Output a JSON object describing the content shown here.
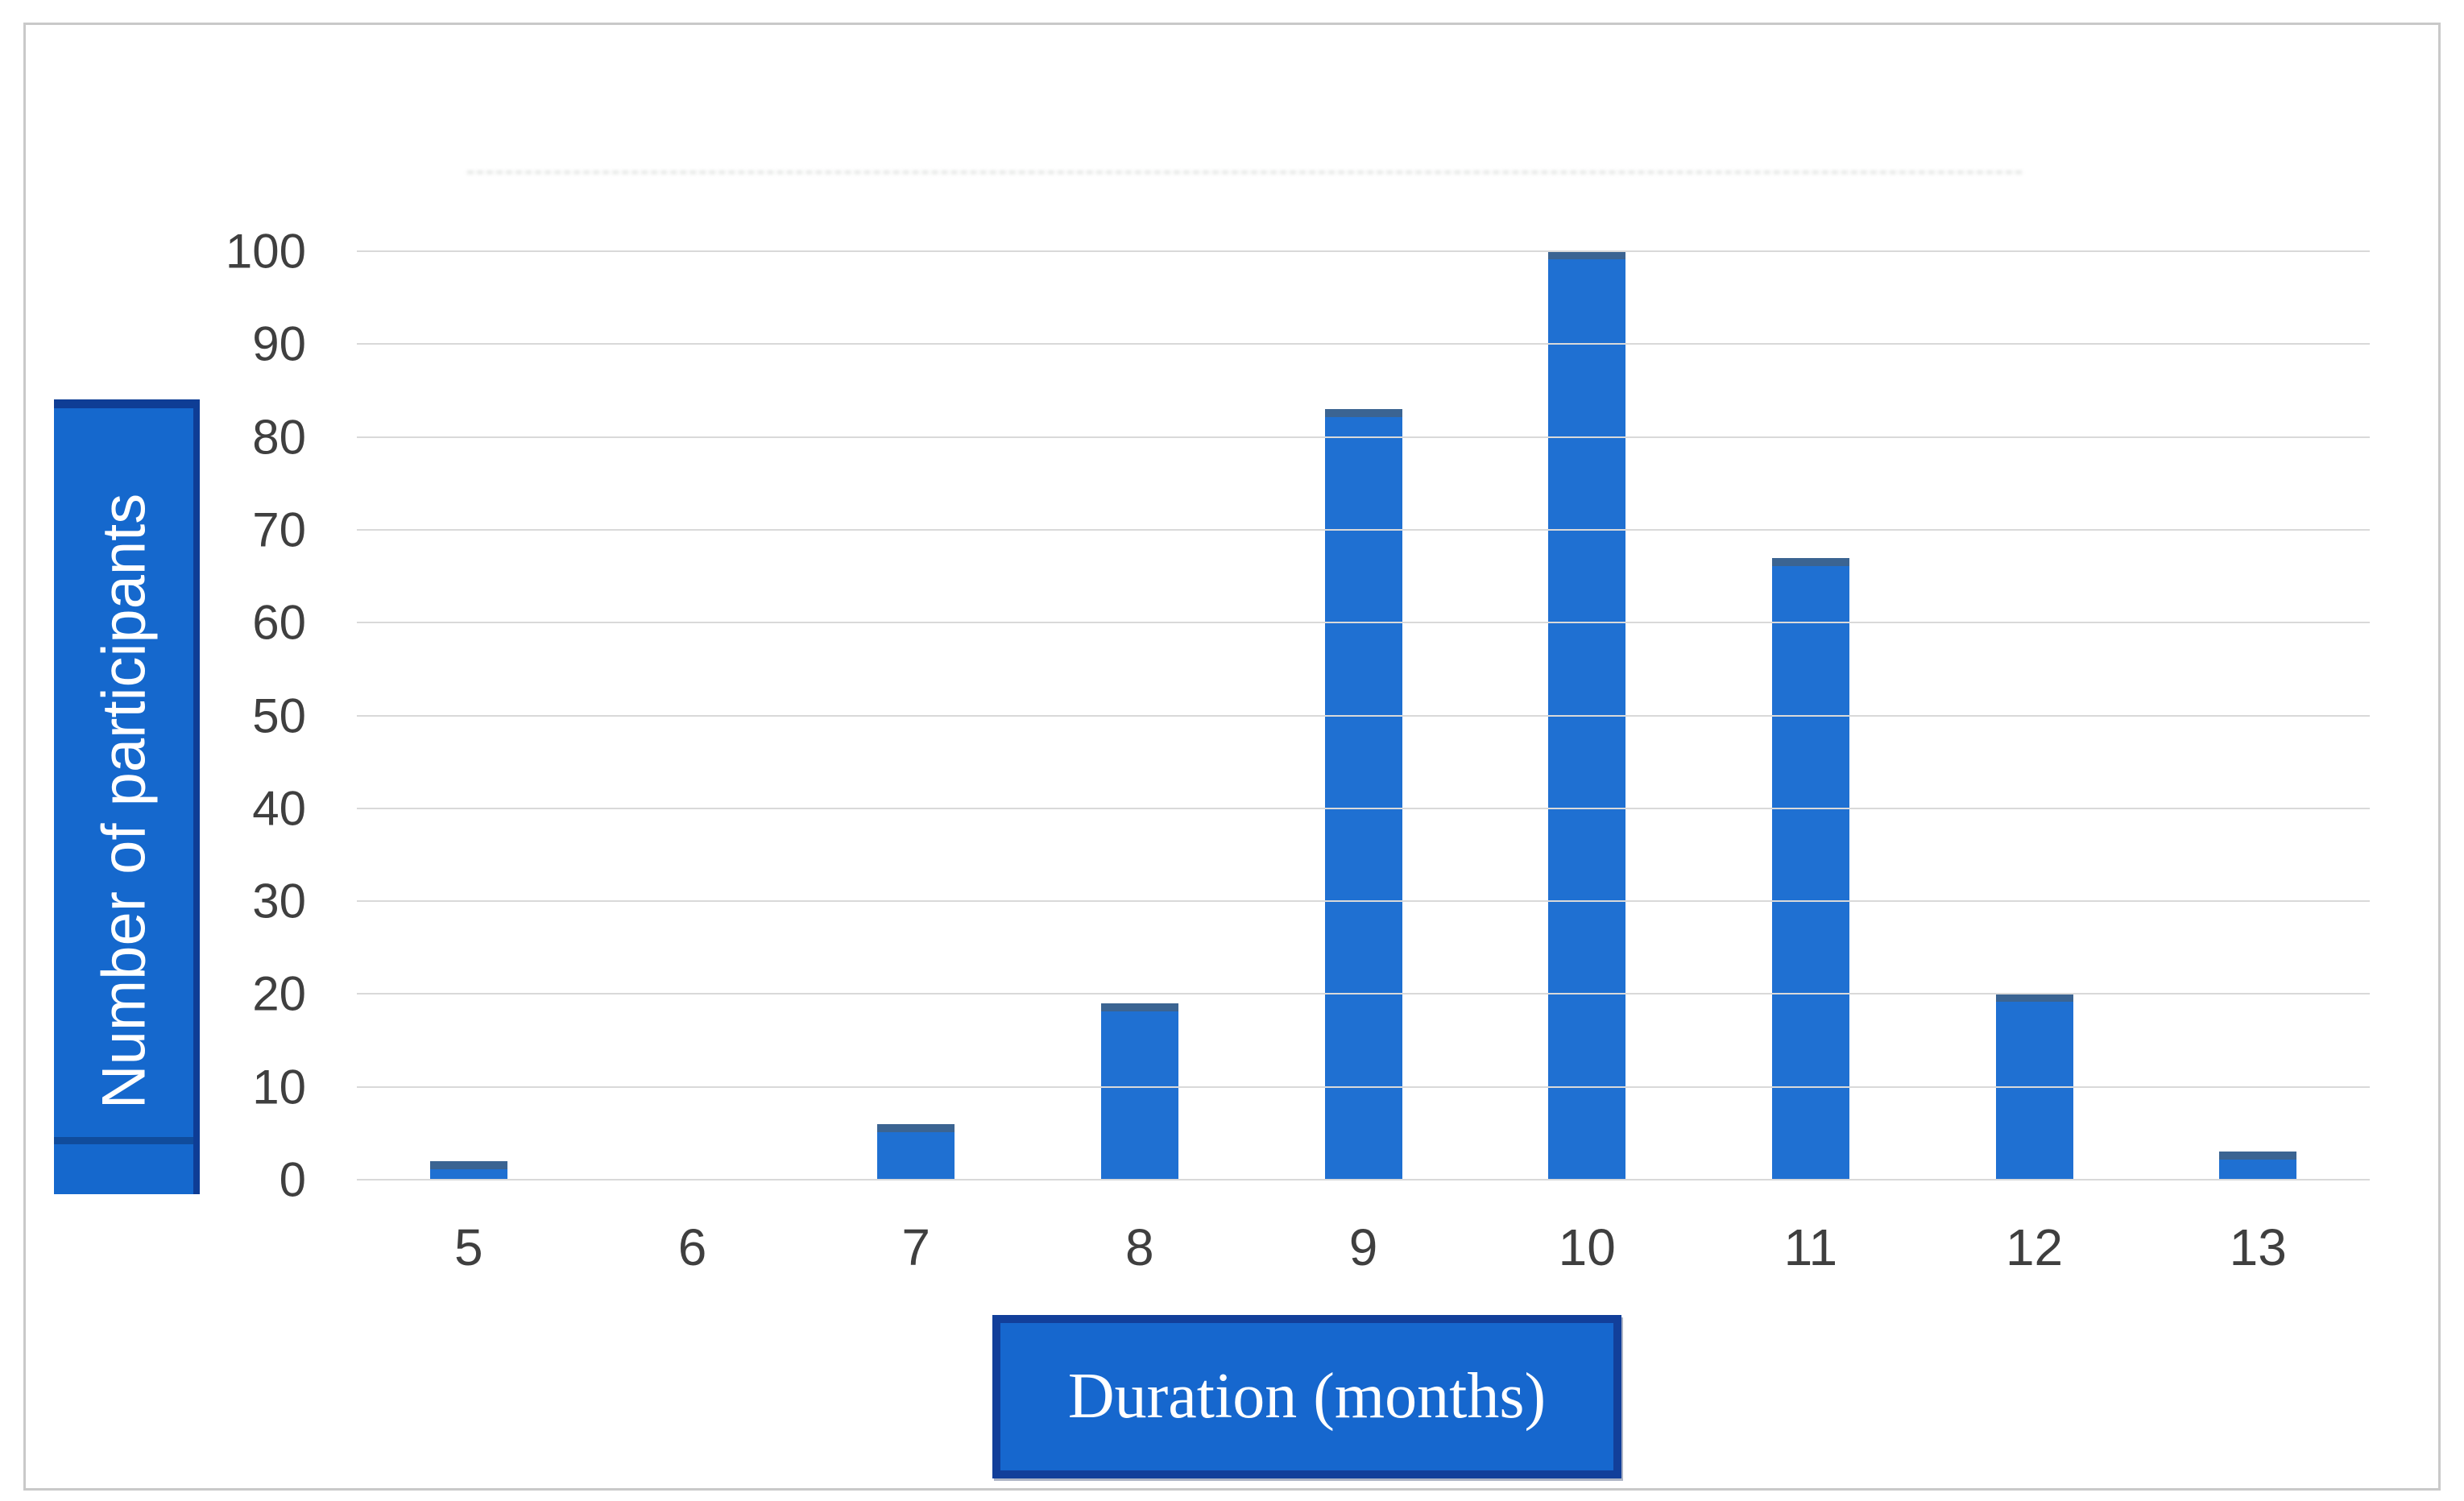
{
  "chart_data": {
    "type": "bar",
    "categories": [
      "5",
      "6",
      "7",
      "8",
      "9",
      "10",
      "11",
      "12",
      "13"
    ],
    "values": [
      2,
      0,
      6,
      19,
      83,
      100,
      67,
      20,
      3
    ],
    "title": "",
    "xlabel": "Duration (months)",
    "ylabel": "Number of participants",
    "ylim": [
      0,
      100
    ],
    "y_ticks": [
      0,
      10,
      20,
      30,
      40,
      50,
      60,
      70,
      80,
      90,
      100
    ],
    "grid": "horizontal gridlines on",
    "legend": "none"
  },
  "colors": {
    "bar_fill": "#1f70d2",
    "bar_top_edge": "#3b6492",
    "label_box_fill": "#1568cd",
    "label_box_border": "#0e3d95",
    "xlabel_box_fill": "#1667ce",
    "xlabel_box_border": "#123f9a",
    "label_text": "#ffffff",
    "tick_text": "#3f3f3f",
    "gridline": "#d9d9d9",
    "frame_border": "#c9c9c9",
    "background": "#ffffff"
  }
}
